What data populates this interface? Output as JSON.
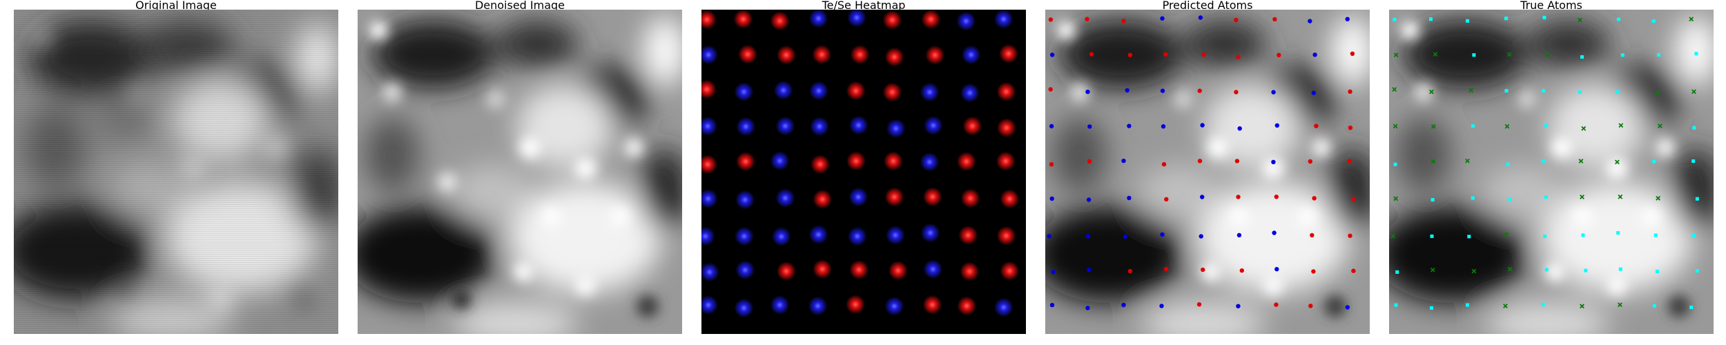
{
  "panels": [
    {
      "id": "original",
      "title": "Original Image"
    },
    {
      "id": "denoised",
      "title": "Denoised Image"
    },
    {
      "id": "heatmap",
      "title": "Te/Se Heatmap"
    },
    {
      "id": "predicted",
      "title": "Predicted Atoms"
    },
    {
      "id": "true",
      "title": "True Atoms"
    }
  ],
  "colors": {
    "te": "#ff1e1e",
    "se": "#2b2bff",
    "pred_te": "#e00000",
    "pred_se": "#0000e0",
    "true_a": "#00ffff",
    "true_b": "#0a7a0a",
    "background": "#000000"
  }
}
